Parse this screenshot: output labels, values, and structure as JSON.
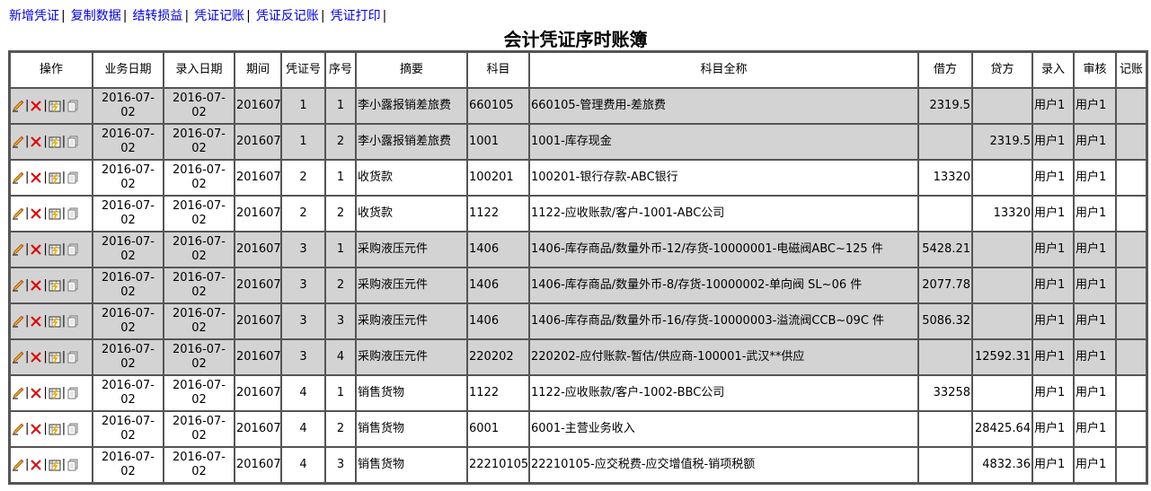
{
  "toolbar": {
    "links": [
      "新增凭证",
      "复制数据",
      "结转损益",
      "凭证记账",
      "凭证反记账",
      "凭证打印"
    ]
  },
  "title": "会计凭证序时账簿",
  "columns": [
    "操作",
    "业务日期",
    "录入日期",
    "期间",
    "凭证号",
    "序号",
    "摘要",
    "科目",
    "科目全称",
    "借方",
    "贷方",
    "录入",
    "审核",
    "记账"
  ],
  "row_colors": {
    "highlight": "#d3d3d3",
    "normal": "#ffffff"
  },
  "icons": [
    "edit-pencil-icon",
    "delete-x-icon",
    "audit-icon",
    "copy-icon"
  ],
  "rows": [
    {
      "hl": true,
      "biz": "2016-07-02",
      "entry": "2016-07-02",
      "period": "201607",
      "voucher": "1",
      "seq": "1",
      "summary": "李小露报销差旅费",
      "code": "660105",
      "name": "660105-管理费用-差旅费",
      "debit": "2319.5",
      "credit": "",
      "input": "用户1",
      "audit": "用户1",
      "post": ""
    },
    {
      "hl": true,
      "biz": "2016-07-02",
      "entry": "2016-07-02",
      "period": "201607",
      "voucher": "1",
      "seq": "2",
      "summary": "李小露报销差旅费",
      "code": "1001",
      "name": "1001-库存现金",
      "debit": "",
      "credit": "2319.5",
      "input": "用户1",
      "audit": "用户1",
      "post": ""
    },
    {
      "hl": false,
      "biz": "2016-07-02",
      "entry": "2016-07-02",
      "period": "201607",
      "voucher": "2",
      "seq": "1",
      "summary": "收货款",
      "code": "100201",
      "name": "100201-银行存款-ABC银行",
      "debit": "13320",
      "credit": "",
      "input": "用户1",
      "audit": "用户1",
      "post": ""
    },
    {
      "hl": false,
      "biz": "2016-07-02",
      "entry": "2016-07-02",
      "period": "201607",
      "voucher": "2",
      "seq": "2",
      "summary": "收货款",
      "code": "1122",
      "name": "1122-应收账款/客户-1001-ABC公司",
      "debit": "",
      "credit": "13320",
      "input": "用户1",
      "audit": "用户1",
      "post": ""
    },
    {
      "hl": true,
      "biz": "2016-07-02",
      "entry": "2016-07-02",
      "period": "201607",
      "voucher": "3",
      "seq": "1",
      "summary": "采购液压元件",
      "code": "1406",
      "name": "1406-库存商品/数量外币-12/存货-10000001-电磁阀ABC~125 件",
      "debit": "5428.21",
      "credit": "",
      "input": "用户1",
      "audit": "用户1",
      "post": ""
    },
    {
      "hl": true,
      "biz": "2016-07-02",
      "entry": "2016-07-02",
      "period": "201607",
      "voucher": "3",
      "seq": "2",
      "summary": "采购液压元件",
      "code": "1406",
      "name": "1406-库存商品/数量外币-8/存货-10000002-单向阀 SL~06 件",
      "debit": "2077.78",
      "credit": "",
      "input": "用户1",
      "audit": "用户1",
      "post": ""
    },
    {
      "hl": true,
      "biz": "2016-07-02",
      "entry": "2016-07-02",
      "period": "201607",
      "voucher": "3",
      "seq": "3",
      "summary": "采购液压元件",
      "code": "1406",
      "name": "1406-库存商品/数量外币-16/存货-10000003-溢流阀CCB~09C 件",
      "debit": "5086.32",
      "credit": "",
      "input": "用户1",
      "audit": "用户1",
      "post": ""
    },
    {
      "hl": true,
      "biz": "2016-07-02",
      "entry": "2016-07-02",
      "period": "201607",
      "voucher": "3",
      "seq": "4",
      "summary": "采购液压元件",
      "code": "220202",
      "name": "220202-应付账款-暂估/供应商-100001-武汉**供应",
      "debit": "",
      "credit": "12592.31",
      "input": "用户1",
      "audit": "用户1",
      "post": ""
    },
    {
      "hl": false,
      "biz": "2016-07-02",
      "entry": "2016-07-02",
      "period": "201607",
      "voucher": "4",
      "seq": "1",
      "summary": "销售货物",
      "code": "1122",
      "name": "1122-应收账款/客户-1002-BBC公司",
      "debit": "33258",
      "credit": "",
      "input": "用户1",
      "audit": "用户1",
      "post": ""
    },
    {
      "hl": false,
      "biz": "2016-07-02",
      "entry": "2016-07-02",
      "period": "201607",
      "voucher": "4",
      "seq": "2",
      "summary": "销售货物",
      "code": "6001",
      "name": "6001-主营业务收入",
      "debit": "",
      "credit": "28425.64",
      "input": "用户1",
      "audit": "用户1",
      "post": ""
    },
    {
      "hl": false,
      "biz": "2016-07-02",
      "entry": "2016-07-02",
      "period": "201607",
      "voucher": "4",
      "seq": "3",
      "summary": "销售货物",
      "code": "22210105",
      "name": "22210105-应交税费-应交增值税-销项税额",
      "debit": "",
      "credit": "4832.36",
      "input": "用户1",
      "audit": "用户1",
      "post": ""
    }
  ]
}
